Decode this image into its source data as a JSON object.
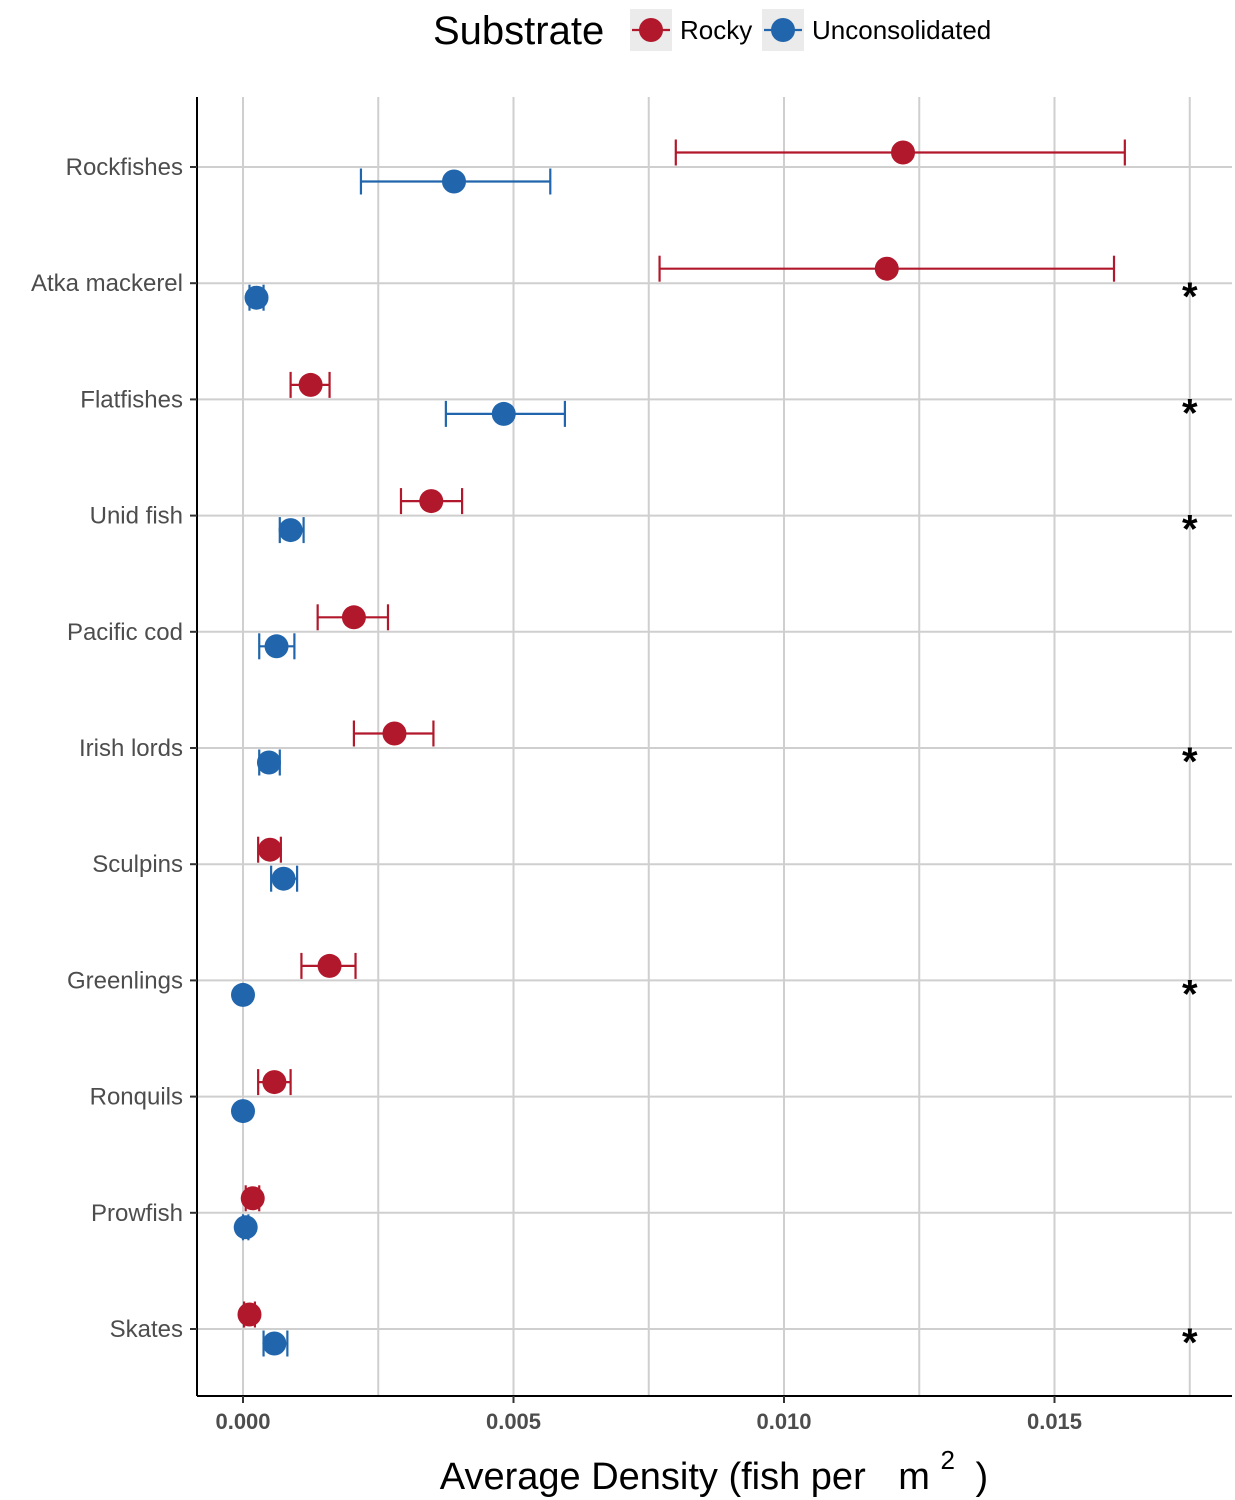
{
  "chart_data": {
    "type": "scatter",
    "orientation": "horizontal",
    "title": "",
    "xlabel": "Average Density (fish per",
    "xlabel_unit_base": "m",
    "xlabel_unit_exp": "2",
    "xlabel_close": ")",
    "ylabel": "",
    "xlim": [
      -0.00085,
      0.0185
    ],
    "xticks": [
      0.0,
      0.005,
      0.01,
      0.015
    ],
    "xtick_labels": [
      "0.000",
      "0.005",
      "0.010",
      "0.015"
    ],
    "grid": true,
    "legend": {
      "title": "Substrate",
      "placement": "top",
      "entries": [
        "Rocky",
        "Unconsolidated"
      ]
    },
    "categories": [
      "Rockfishes",
      "Atka mackerel",
      "Flatfishes",
      "Unid fish",
      "Pacific cod",
      "Irish lords",
      "Sculpins",
      "Greenlings",
      "Ronquils",
      "Prowfish",
      "Skates"
    ],
    "series": [
      {
        "name": "Rocky",
        "color": "#b2182b",
        "values": [
          0.0122,
          0.0119,
          0.00125,
          0.00348,
          0.00205,
          0.0028,
          0.0005,
          0.0016,
          0.00058,
          0.00018,
          0.00012
        ],
        "lower": [
          0.008,
          0.0077,
          0.00088,
          0.00292,
          0.00138,
          0.00205,
          0.00028,
          0.00108,
          0.00028,
          5e-05,
          2e-05
        ],
        "upper": [
          0.0163,
          0.0161,
          0.0016,
          0.00405,
          0.00268,
          0.00352,
          0.0007,
          0.00208,
          0.00088,
          0.0003,
          0.00022
        ]
      },
      {
        "name": "Unconsolidated",
        "color": "#2166ac",
        "values": [
          0.0039,
          0.00025,
          0.00482,
          0.00088,
          0.00062,
          0.00048,
          0.00075,
          0.0,
          0.0,
          5e-05,
          0.00058
        ],
        "lower": [
          0.00218,
          0.00012,
          0.00375,
          0.00068,
          0.0003,
          0.0003,
          0.00052,
          0.0,
          0.0,
          0.0,
          0.00038
        ],
        "upper": [
          0.00568,
          0.00038,
          0.00595,
          0.00112,
          0.00095,
          0.00068,
          0.001,
          0.0,
          0.0,
          0.0001,
          0.00082
        ]
      }
    ],
    "significance_marker": "*",
    "significant_categories": [
      "Atka mackerel",
      "Flatfishes",
      "Unid fish",
      "Irish lords",
      "Greenlings",
      "Skates"
    ],
    "significance_x": 0.0175
  }
}
